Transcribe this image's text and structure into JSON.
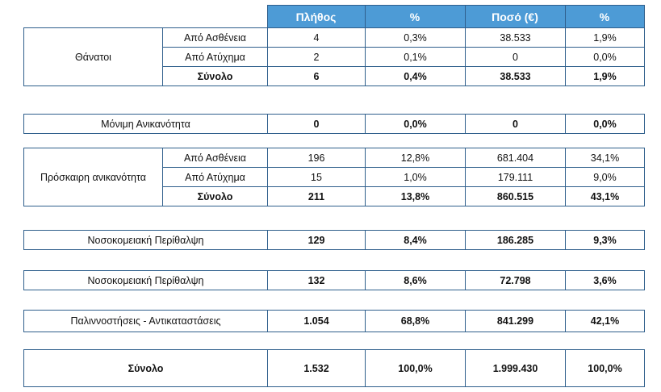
{
  "header": {
    "col_count": "Πλήθος",
    "col_pct1": "%",
    "col_amount": "Ποσό (€)",
    "col_pct2": "%"
  },
  "groups": {
    "deaths": {
      "label": "Θάνατοι",
      "rows": [
        {
          "sub": "Από Ασθένεια",
          "count": "4",
          "pct1": "0,3%",
          "amount": "38.533",
          "pct2": "1,9%"
        },
        {
          "sub": "Από Ατύχημα",
          "count": "2",
          "pct1": "0,1%",
          "amount": "0",
          "pct2": "0,0%"
        },
        {
          "sub": "Σύνολο",
          "count": "6",
          "pct1": "0,4%",
          "amount": "38.533",
          "pct2": "1,9%"
        }
      ]
    },
    "permanent": {
      "label": "Μόνιμη  Ανικανότητα",
      "count": "0",
      "pct1": "0,0%",
      "amount": "0",
      "pct2": "0,0%"
    },
    "temporary": {
      "label": "Πρόσκαιρη ανικανότητα",
      "rows": [
        {
          "sub": "Από Ασθένεια",
          "count": "196",
          "pct1": "12,8%",
          "amount": "681.404",
          "pct2": "34,1%"
        },
        {
          "sub": "Από Ατύχημα",
          "count": "15",
          "pct1": "1,0%",
          "amount": "179.111",
          "pct2": "9,0%"
        },
        {
          "sub": "Σύνολο",
          "count": "211",
          "pct1": "13,8%",
          "amount": "860.515",
          "pct2": "43,1%"
        }
      ]
    },
    "hospital1": {
      "label": "Νοσοκομειακή Περίθαλψη",
      "count": "129",
      "pct1": "8,4%",
      "amount": "186.285",
      "pct2": "9,3%"
    },
    "hospital2": {
      "label": "Νοσοκομειακή Περίθαλψη",
      "count": "132",
      "pct1": "8,6%",
      "amount": "72.798",
      "pct2": "3,6%"
    },
    "refunds": {
      "label": "Παλιννοστήσεις  -  Αντικαταστάσεις",
      "count": "1.054",
      "pct1": "68,8%",
      "amount": "841.299",
      "pct2": "42,1%"
    },
    "total": {
      "label": "Σύνολο",
      "count": "1.532",
      "pct1": "100,0%",
      "amount": "1.999.430",
      "pct2": "100,0%"
    }
  }
}
